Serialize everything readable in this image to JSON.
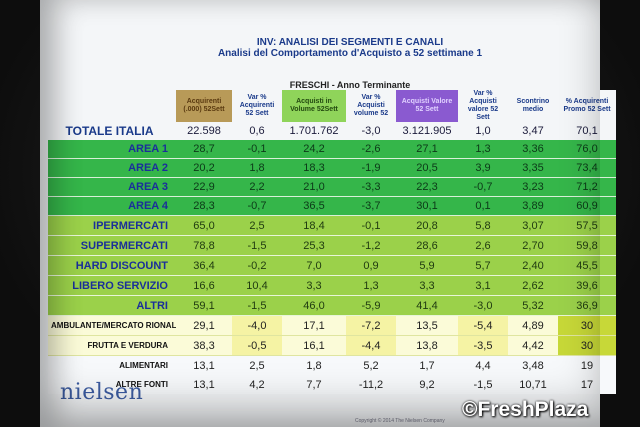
{
  "header": {
    "title": "INV: ANALISI DEI SEGMENTI E CANALI",
    "subtitle": "Analisi del Comportamento d'Acquisto a 52 settimane 1",
    "period": "FRESCHI - Anno Terminante"
  },
  "columns": [
    "Acquirenti (.000) 52Sett",
    "Var % Acquirenti 52 Sett",
    "Acquisti in Volume 52Sett",
    "Var % Acquisti volume 52",
    "Acquisti Valore 52 Sett",
    "Var % Acquisti valore 52 Sett",
    "Scontrino medio",
    "% Acquirenti Promo 52 Sett"
  ],
  "rows": [
    {
      "label": "TOTALE ITALIA",
      "values": [
        "22.598",
        "0,6",
        "1.701.762",
        "-3,0",
        "3.121.905",
        "1,0",
        "3,47",
        "70,1"
      ]
    },
    {
      "label": "AREA 1",
      "values": [
        "28,7",
        "-0,1",
        "24,2",
        "-2,6",
        "27,1",
        "1,3",
        "3,36",
        "76,0"
      ]
    },
    {
      "label": "AREA 2",
      "values": [
        "20,2",
        "1,8",
        "18,3",
        "-1,9",
        "20,5",
        "3,9",
        "3,35",
        "73,4"
      ]
    },
    {
      "label": "AREA 3",
      "values": [
        "22,9",
        "2,2",
        "21,0",
        "-3,3",
        "22,3",
        "-0,7",
        "3,23",
        "71,2"
      ]
    },
    {
      "label": "AREA 4",
      "values": [
        "28,3",
        "-0,7",
        "36,5",
        "-3,7",
        "30,1",
        "0,1",
        "3,89",
        "60,9"
      ]
    },
    {
      "label": "IPERMERCATI",
      "values": [
        "65,0",
        "2,5",
        "18,4",
        "-0,1",
        "20,8",
        "5,8",
        "3,07",
        "57,5"
      ]
    },
    {
      "label": "SUPERMERCATI",
      "values": [
        "78,8",
        "-1,5",
        "25,3",
        "-1,2",
        "28,6",
        "2,6",
        "2,70",
        "59,8"
      ]
    },
    {
      "label": "HARD DISCOUNT",
      "values": [
        "36,4",
        "-0,2",
        "7,0",
        "0,9",
        "5,9",
        "5,7",
        "2,40",
        "45,5"
      ]
    },
    {
      "label": "LIBERO SERVIZIO",
      "values": [
        "16,6",
        "10,4",
        "3,3",
        "1,3",
        "3,3",
        "3,1",
        "2,62",
        "39,6"
      ]
    },
    {
      "label": "ALTRI",
      "values": [
        "59,1",
        "-1,5",
        "46,0",
        "-5,9",
        "41,4",
        "-3,0",
        "5,32",
        "36,9"
      ]
    },
    {
      "label": "AMBULANTE/MERCATO RIONALE",
      "values": [
        "29,1",
        "-4,0",
        "17,1",
        "-7,2",
        "13,5",
        "-5,4",
        "4,89",
        "30"
      ]
    },
    {
      "label": "FRUTTA E VERDURA",
      "values": [
        "38,3",
        "-0,5",
        "16,1",
        "-4,4",
        "13,8",
        "-3,5",
        "4,42",
        "30"
      ]
    },
    {
      "label": "ALIMENTARI",
      "values": [
        "13,1",
        "2,5",
        "1,8",
        "5,2",
        "1,7",
        "4,4",
        "3,48",
        "19"
      ]
    },
    {
      "label": "ALTRE FONTI",
      "values": [
        "13,1",
        "4,2",
        "7,7",
        "-11,2",
        "9,2",
        "-1,5",
        "10,71",
        "17"
      ]
    }
  ],
  "logo": "nielsen",
  "footnote": "Copyright © 2014 The Nielsen Company",
  "watermark": "©FreshPlaza",
  "colors": {
    "screen": "#f4f6f8",
    "area_green": "#35b64a",
    "channel_green": "#9bd14a",
    "sub_yellow": "#f5f3a4",
    "header_brown": "#b89a58",
    "header_purple": "#8a5ad0",
    "title_blue": "#1a3a8a"
  }
}
